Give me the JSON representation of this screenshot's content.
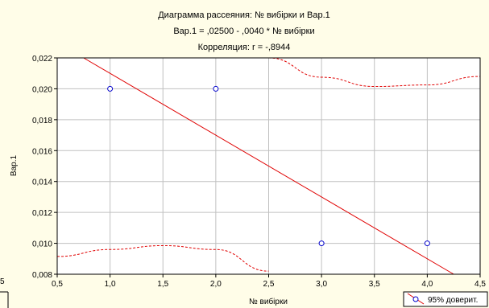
{
  "chart_data": {
    "type": "scatter",
    "title": "Диаграмма рассеяния: № вибірки  и  Вар.1",
    "subtitle": "Вар.1 = ,02500 - ,0040  * № вибірки",
    "subtitle2": "Корреляция: r =  -,8944",
    "xlabel": "№ вибірки",
    "ylabel": "Вар.1",
    "xlim": [
      0.5,
      4.5
    ],
    "ylim": [
      0.008,
      0.022
    ],
    "x_ticks": [
      0.5,
      1.0,
      1.5,
      2.0,
      2.5,
      3.0,
      3.5,
      4.0,
      4.5
    ],
    "x_tick_labels": [
      "0,5",
      "1,0",
      "1,5",
      "2,0",
      "2,5",
      "3,0",
      "3,5",
      "4,0",
      "4,5"
    ],
    "y_ticks": [
      0.008,
      0.01,
      0.012,
      0.014,
      0.016,
      0.018,
      0.02,
      0.022
    ],
    "y_tick_labels": [
      "0,008",
      "0,010",
      "0,012",
      "0,014",
      "0,016",
      "0,018",
      "0,020",
      "0,022"
    ],
    "grid": true,
    "points": [
      {
        "x": 1,
        "y": 0.02
      },
      {
        "x": 2,
        "y": 0.02
      },
      {
        "x": 3,
        "y": 0.01
      },
      {
        "x": 4,
        "y": 0.01
      }
    ],
    "regression": {
      "intercept": 0.025,
      "slope": -0.004
    },
    "confidence_band": {
      "upper": [
        {
          "x": 2.5,
          "y": 0.022
        },
        {
          "x": 3.0,
          "y": 0.02075
        },
        {
          "x": 3.5,
          "y": 0.02015
        },
        {
          "x": 4.0,
          "y": 0.02025
        },
        {
          "x": 4.5,
          "y": 0.0208
        }
      ],
      "lower": [
        {
          "x": 0.5,
          "y": 0.00915
        },
        {
          "x": 1.0,
          "y": 0.0096
        },
        {
          "x": 1.5,
          "y": 0.00985
        },
        {
          "x": 2.0,
          "y": 0.0096
        },
        {
          "x": 2.5,
          "y": 0.0082
        }
      ]
    },
    "legend": {
      "label": "95% доверит.",
      "placement": "bottom-right"
    },
    "edge_label": "5",
    "colors": {
      "line": "#e00000",
      "marker": "#0000cc",
      "grid": "#c0c0c0",
      "background": "#fffde8"
    }
  }
}
